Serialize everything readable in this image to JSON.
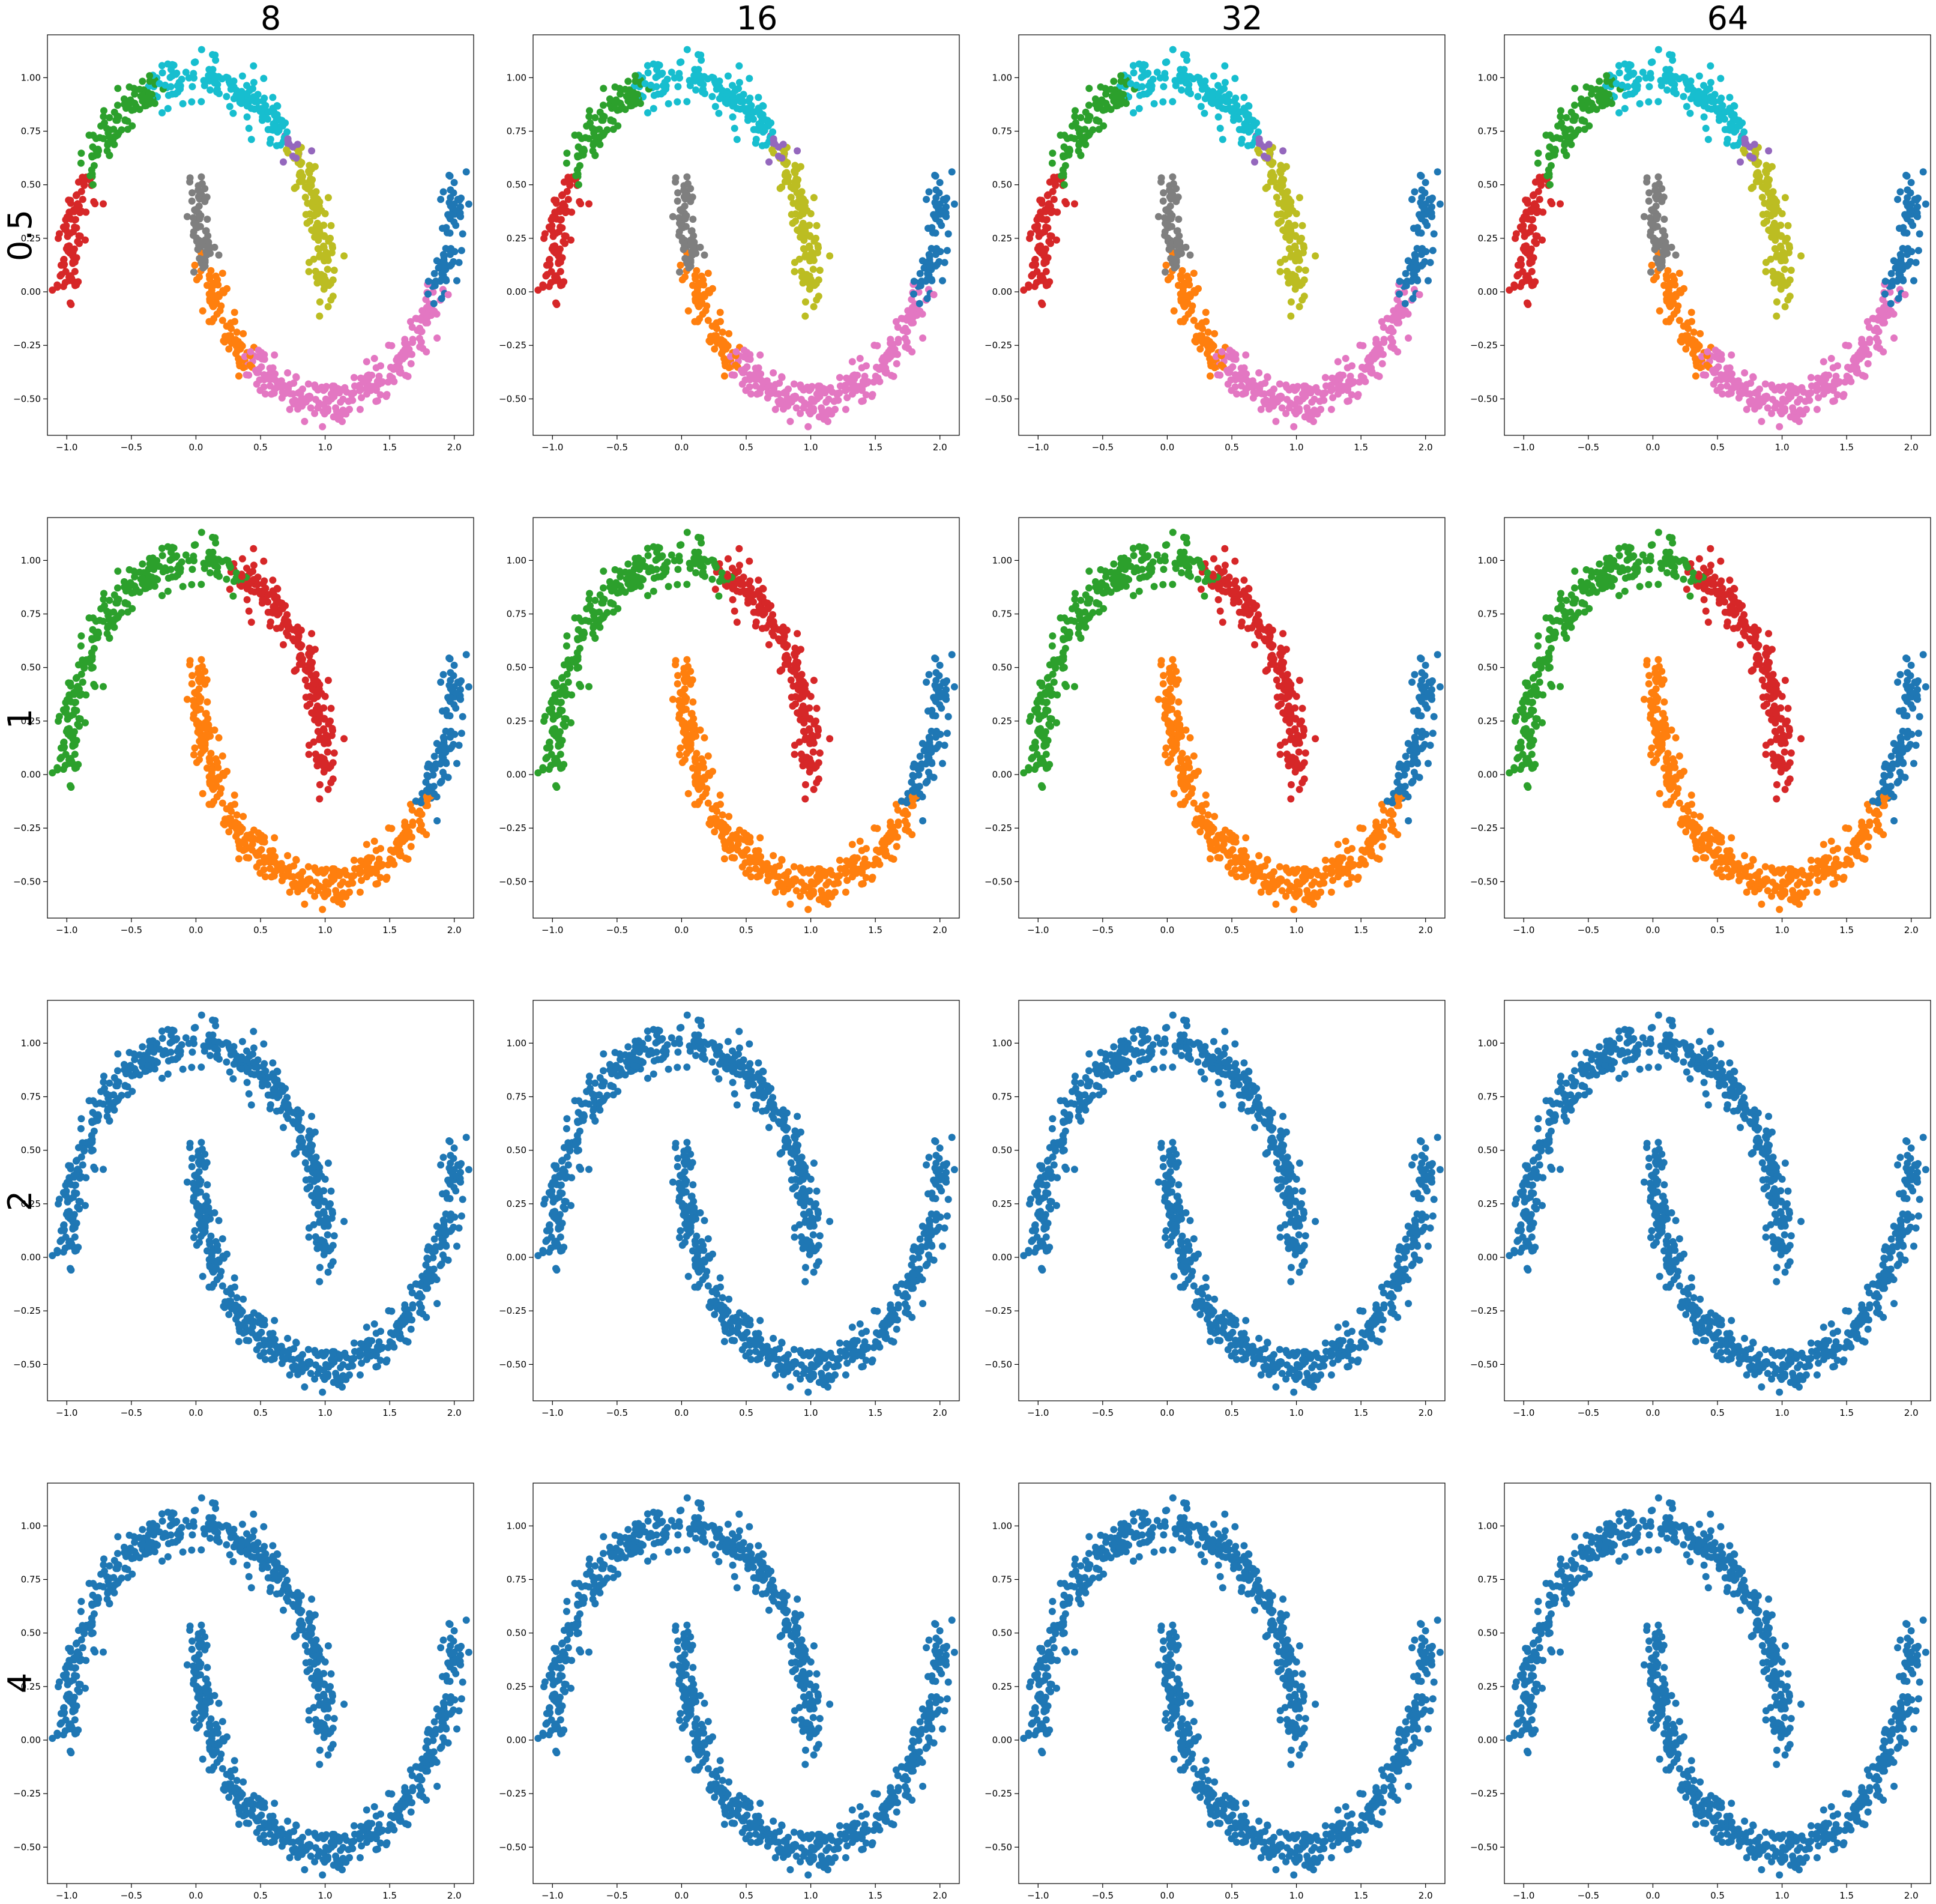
{
  "figure": {
    "column_titles": [
      "8",
      "16",
      "32",
      "64"
    ],
    "row_titles": [
      "0.5",
      "1",
      "2",
      "4"
    ]
  },
  "chart_data": {
    "type": "scatter",
    "description_of_grid": "4 rows x 4 columns of scatter plots of a two-moons dataset colored by cluster assignment",
    "xlim": [
      -1.15,
      2.15
    ],
    "ylim": [
      -0.67,
      1.2
    ],
    "xticks": [
      -1.0,
      -0.5,
      0.0,
      0.5,
      1.0,
      1.5,
      2.0
    ],
    "xtick_labels": [
      "−1.0",
      "−0.5",
      "0.0",
      "0.5",
      "1.0",
      "1.5",
      "2.0"
    ],
    "yticks": [
      -0.5,
      -0.25,
      0.0,
      0.25,
      0.5,
      0.75,
      1.0
    ],
    "ytick_labels": [
      "−0.50",
      "−0.25",
      "0.00",
      "0.25",
      "0.50",
      "0.75",
      "1.00"
    ],
    "colors": {
      "blue": "#1f77b4",
      "orange": "#ff7f0e",
      "green": "#2ca02c",
      "red": "#d62728",
      "purple": "#9467bd",
      "brown": "#8c564b",
      "pink": "#e377c2",
      "gray": "#7f7f7f",
      "olive": "#bcbd22",
      "cyan": "#17becf"
    },
    "moons": {
      "upper": {
        "center": [
          0,
          0
        ],
        "radius": 1,
        "theta_range_deg": [
          0,
          180
        ]
      },
      "lower": {
        "center": [
          1,
          0.5
        ],
        "radius": 1,
        "theta_range_deg": [
          180,
          360
        ]
      },
      "noise": 0.05,
      "points_per_moon": 500
    },
    "rows": [
      {
        "row": "0.5",
        "clusters": [
          {
            "color": "blue",
            "moon": "lower",
            "t_range": [
              0.83,
              1.0
            ]
          },
          {
            "color": "orange",
            "moon": "lower",
            "t_range": [
              0.12,
              0.3
            ]
          },
          {
            "color": "green",
            "moon": "upper",
            "t_range": [
              0.6,
              0.82
            ]
          },
          {
            "color": "red",
            "moon": "upper",
            "t_range": [
              0.82,
              1.0
            ]
          },
          {
            "color": "purple",
            "moon": "upper",
            "t_range": [
              0.22,
              0.25
            ]
          },
          {
            "color": "brown",
            "moon": "lower",
            "t_range": [
              1.0,
              1.12
            ]
          },
          {
            "color": "pink",
            "moon": "lower",
            "t_range": [
              0.3,
              0.83
            ]
          },
          {
            "color": "gray",
            "moon": "lower",
            "t_range": [
              0.0,
              0.12
            ]
          },
          {
            "color": "olive",
            "moon": "upper",
            "t_range": [
              0.0,
              0.22
            ]
          },
          {
            "color": "cyan",
            "moon": "upper",
            "t_range": [
              0.25,
              0.6
            ]
          }
        ]
      },
      {
        "row": "1",
        "clusters": [
          {
            "color": "blue",
            "moon": "lower",
            "t_range": [
              0.78,
              1.0
            ]
          },
          {
            "color": "orange",
            "moon": "lower",
            "t_range": [
              0.0,
              0.78
            ]
          },
          {
            "color": "green",
            "moon": "upper",
            "t_range": [
              0.4,
              1.0
            ]
          },
          {
            "color": "red",
            "moon": "upper",
            "t_range": [
              0.0,
              0.4
            ]
          }
        ]
      },
      {
        "row": "2",
        "clusters": [
          {
            "color": "blue",
            "moon": "both",
            "t_range": [
              0.0,
              1.0
            ]
          }
        ]
      },
      {
        "row": "4",
        "clusters": [
          {
            "color": "blue",
            "moon": "both",
            "t_range": [
              0.0,
              1.0
            ]
          }
        ]
      }
    ]
  }
}
